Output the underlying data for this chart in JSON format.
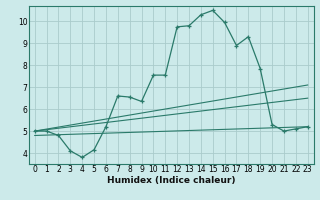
{
  "title": "",
  "xlabel": "Humidex (Indice chaleur)",
  "bg_color": "#cceaea",
  "grid_color": "#aacccc",
  "line_color": "#2a7a6a",
  "xlim": [
    -0.5,
    23.5
  ],
  "ylim": [
    3.5,
    10.7
  ],
  "xticks": [
    0,
    1,
    2,
    3,
    4,
    5,
    6,
    7,
    8,
    9,
    10,
    11,
    12,
    13,
    14,
    15,
    16,
    17,
    18,
    19,
    20,
    21,
    22,
    23
  ],
  "yticks": [
    4,
    5,
    6,
    7,
    8,
    9,
    10
  ],
  "main_x": [
    0,
    1,
    2,
    3,
    4,
    5,
    6,
    7,
    8,
    9,
    10,
    11,
    12,
    13,
    14,
    15,
    16,
    17,
    18,
    19,
    20,
    21,
    22,
    23
  ],
  "main_y": [
    5.0,
    5.0,
    4.8,
    4.1,
    3.8,
    4.15,
    5.2,
    6.6,
    6.55,
    6.35,
    7.55,
    7.55,
    9.75,
    9.8,
    10.3,
    10.5,
    9.95,
    8.9,
    9.3,
    7.85,
    5.3,
    5.0,
    5.1,
    5.2
  ],
  "trend1_x": [
    0,
    23
  ],
  "trend1_y": [
    5.0,
    6.5
  ],
  "trend2_x": [
    0,
    23
  ],
  "trend2_y": [
    5.0,
    7.1
  ],
  "trend3_x": [
    0,
    23
  ],
  "trend3_y": [
    4.8,
    5.2
  ]
}
